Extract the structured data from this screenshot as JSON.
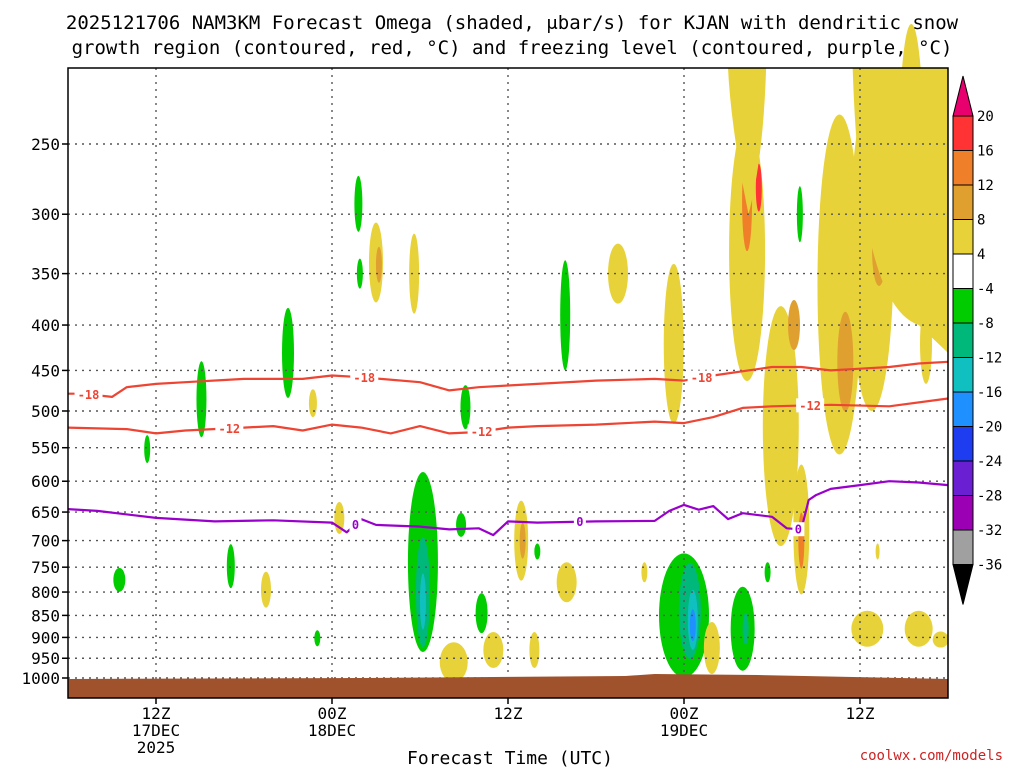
{
  "chart_data": {
    "type": "heatmap",
    "title_lines": [
      "2025121706 NAM3KM Forecast Omega (shaded, μbar/s) for KJAN with dendritic snow",
      "growth region (contoured, red, °C) and freezing level (contoured, purple, °C)"
    ],
    "xlabel": "Forecast Time (UTC)",
    "credit": "coolwx.com/models",
    "x_range_hours": [
      0,
      60
    ],
    "x_ticks": [
      {
        "hour": 6,
        "lines": [
          "12Z",
          "17DEC",
          "2025"
        ]
      },
      {
        "hour": 18,
        "lines": [
          "00Z",
          "18DEC"
        ]
      },
      {
        "hour": 30,
        "lines": [
          "12Z"
        ]
      },
      {
        "hour": 42,
        "lines": [
          "00Z",
          "19DEC"
        ]
      },
      {
        "hour": 54,
        "lines": [
          "12Z"
        ]
      }
    ],
    "y_levels_mb": [
      "250",
      "300",
      "350",
      "400",
      "450",
      "500",
      "550",
      "600",
      "650",
      "700",
      "750",
      "800",
      "850",
      "900",
      "950",
      "1000"
    ],
    "colorbar_ticks": [
      "20",
      "16",
      "12",
      "8",
      "4",
      "-4",
      "-8",
      "-12",
      "-16",
      "-20",
      "-24",
      "-28",
      "-32",
      "-36"
    ],
    "colors": {
      "grid": "#555555",
      "ground": "#a0522d",
      "isotherm_dgz": "#ee4433",
      "freezing_level": "#9900cc",
      "levels": [
        "#e8006f",
        "#ff3333",
        "#f07f2a",
        "#e0a030",
        "#e8d23a",
        "#ffffff",
        "#00cc00",
        "#00b87a",
        "#10c0c0",
        "#1e90ff",
        "#1e3cf0",
        "#6a1fd2",
        "#9b00b4",
        "#a0a0a0",
        "#000000"
      ]
    },
    "contours": [
      {
        "label": "-18",
        "color_key": "isotherm_dgz",
        "hours": [
          0,
          1,
          3,
          4,
          6,
          8,
          12,
          16,
          18,
          20,
          24,
          26,
          28,
          30,
          32,
          36,
          40,
          42,
          44,
          48,
          50,
          52,
          54,
          56,
          58,
          60
        ],
        "pressure": [
          478,
          478,
          482,
          470,
          466,
          464,
          460,
          460,
          456,
          458,
          464,
          474,
          470,
          468,
          466,
          462,
          460,
          462,
          456,
          446,
          446,
          450,
          448,
          446,
          442,
          440
        ],
        "label_hours": [
          1.4,
          20.2,
          43.2
        ]
      },
      {
        "label": "-12",
        "color_key": "isotherm_dgz",
        "hours": [
          0,
          4,
          6,
          8,
          12,
          14,
          16,
          18,
          20,
          22,
          24,
          26,
          28,
          30,
          32,
          36,
          40,
          42,
          44,
          46,
          48,
          52,
          56,
          60
        ],
        "pressure": [
          522,
          524,
          530,
          526,
          522,
          520,
          526,
          518,
          522,
          530,
          520,
          530,
          528,
          522,
          520,
          518,
          514,
          516,
          508,
          496,
          494,
          492,
          494,
          484
        ],
        "label_hours": [
          11,
          28.2,
          50.6
        ]
      },
      {
        "label": "0",
        "color_key": "freezing_level",
        "hours": [
          0,
          2,
          6,
          10,
          14,
          18,
          19,
          20,
          21,
          24,
          26,
          28,
          29,
          30,
          32,
          36,
          40,
          41,
          42,
          43,
          44,
          45,
          46,
          48,
          49,
          50,
          50.5,
          51,
          52,
          54,
          56,
          58,
          60
        ],
        "pressure": [
          645,
          648,
          660,
          666,
          664,
          668,
          685,
          662,
          672,
          675,
          680,
          678,
          690,
          666,
          668,
          666,
          665,
          648,
          638,
          646,
          640,
          662,
          652,
          658,
          678,
          680,
          630,
          622,
          612,
          606,
          600,
          602,
          606
        ],
        "label_hours": [
          19.6,
          34.9,
          49.8
        ]
      }
    ]
  }
}
